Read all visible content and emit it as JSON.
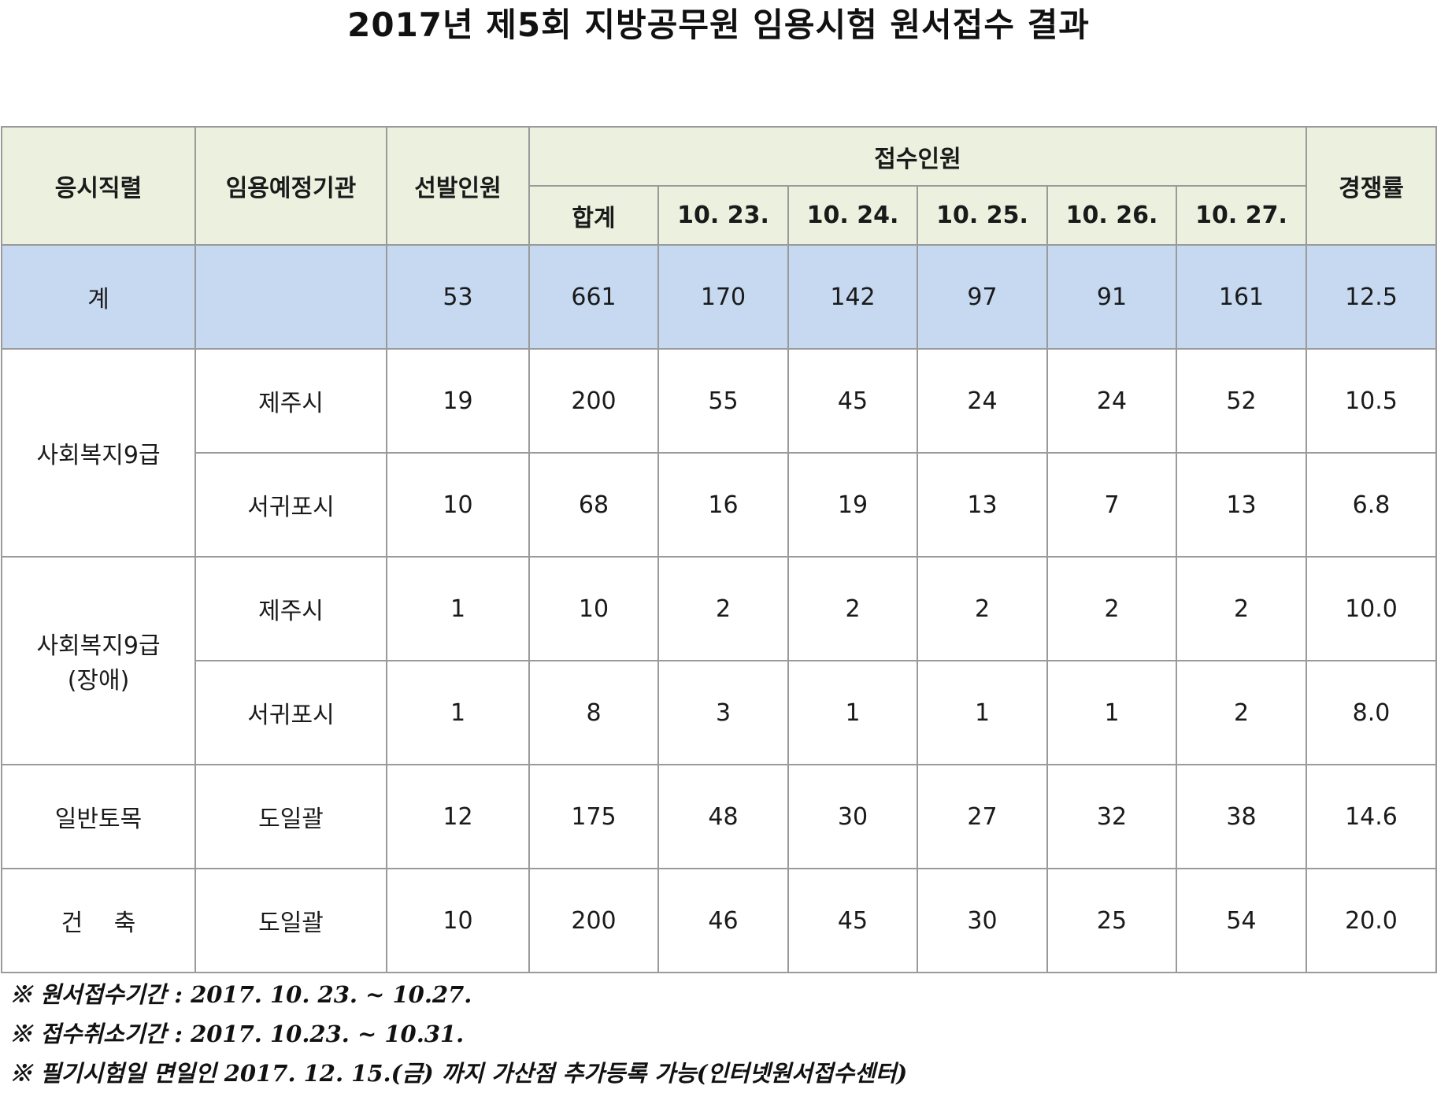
{
  "title": "2017년 제5회 지방공무원 임용시험 원서접수 결과",
  "headers": {
    "rank": "응시직렬",
    "agency": "임용예정기관",
    "quota": "선발인원",
    "received": "접수인원",
    "total": "합계",
    "d1": "10. 23.",
    "d2": "10. 24.",
    "d3": "10. 25.",
    "d4": "10. 26.",
    "d5": "10. 27.",
    "ratio": "경쟁률"
  },
  "total_row": {
    "label": "계",
    "agency": "",
    "quota": "53",
    "total": "661",
    "d1": "170",
    "d2": "142",
    "d3": "97",
    "d4": "91",
    "d5": "161",
    "ratio": "12.5"
  },
  "groups": {
    "g1": "사회복지9급",
    "g2_line1": "사회복지9급",
    "g2_line2": "(장애)",
    "g3": "일반토목",
    "g4": "건　 축"
  },
  "rows": [
    {
      "agency": "제주시",
      "quota": "19",
      "total": "200",
      "d1": "55",
      "d2": "45",
      "d3": "24",
      "d4": "24",
      "d5": "52",
      "ratio": "10.5"
    },
    {
      "agency": "서귀포시",
      "quota": "10",
      "total": "68",
      "d1": "16",
      "d2": "19",
      "d3": "13",
      "d4": "7",
      "d5": "13",
      "ratio": "6.8"
    },
    {
      "agency": "제주시",
      "quota": "1",
      "total": "10",
      "d1": "2",
      "d2": "2",
      "d3": "2",
      "d4": "2",
      "d5": "2",
      "ratio": "10.0"
    },
    {
      "agency": "서귀포시",
      "quota": "1",
      "total": "8",
      "d1": "3",
      "d2": "1",
      "d3": "1",
      "d4": "1",
      "d5": "2",
      "ratio": "8.0"
    },
    {
      "agency": "도일괄",
      "quota": "12",
      "total": "175",
      "d1": "48",
      "d2": "30",
      "d3": "27",
      "d4": "32",
      "d5": "38",
      "ratio": "14.6"
    },
    {
      "agency": "도일괄",
      "quota": "10",
      "total": "200",
      "d1": "46",
      "d2": "45",
      "d3": "30",
      "d4": "25",
      "d5": "54",
      "ratio": "20.0"
    }
  ],
  "notes": [
    "※ 원서접수기간 : 2017. 10. 23. ~ 10.27.",
    "※ 접수취소기간 : 2017. 10.23. ~ 10.31.",
    "※ 필기시험일 면일인 2017. 12. 15.(금) 까지 가산점 추가등록 가능(인터넷원서접수센터)"
  ]
}
